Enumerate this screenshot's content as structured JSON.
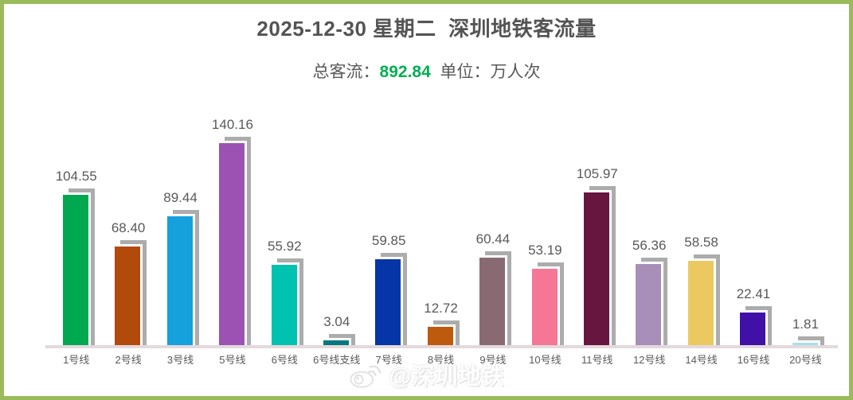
{
  "page": {
    "border_color": "#9BBA5C",
    "background_color": "#ffffff"
  },
  "header": {
    "title": "2025-12-30 星期二  深圳地铁客流量",
    "subtitle_prefix": "总客流：",
    "total_value": "892.84",
    "subtitle_suffix": "  单位：万人次",
    "total_color": "#00B050"
  },
  "chart_data": {
    "type": "bar",
    "title": "2025-12-30 星期二  深圳地铁客流量",
    "total_label": "总客流",
    "total": 892.84,
    "unit": "万人次",
    "categories": [
      "1号线",
      "2号线",
      "3号线",
      "5号线",
      "6号线",
      "6号线支线",
      "7号线",
      "8号线",
      "9号线",
      "10号线",
      "11号线",
      "12号线",
      "14号线",
      "16号线",
      "20号线"
    ],
    "values": [
      104.55,
      68.4,
      89.44,
      140.16,
      55.92,
      3.04,
      59.85,
      12.72,
      60.44,
      53.19,
      105.97,
      56.36,
      58.58,
      22.41,
      1.81
    ],
    "value_labels": [
      "104.55",
      "68.40",
      "89.44",
      "140.16",
      "55.92",
      "3.04",
      "59.85",
      "12.72",
      "60.44",
      "53.19",
      "105.97",
      "56.36",
      "58.58",
      "22.41",
      "1.81"
    ],
    "bar_colors": [
      "#00A950",
      "#B24A0C",
      "#16A0DC",
      "#9C52B3",
      "#00C2B0",
      "#06787E",
      "#0535A6",
      "#BE5A0D",
      "#8A6A72",
      "#F57795",
      "#671640",
      "#A88FB9",
      "#ECC960",
      "#4110A6",
      "#A6E0EE"
    ],
    "shadow_color": "#ACACAC",
    "baseline_color": "#E3D9DC",
    "label_color": "#595959",
    "ylim": [
      0,
      150
    ],
    "grid": false,
    "legend": false,
    "axis_lines": "baseline-only"
  },
  "watermark": {
    "handle": "@深圳地铁",
    "icon": "weibo-icon"
  }
}
